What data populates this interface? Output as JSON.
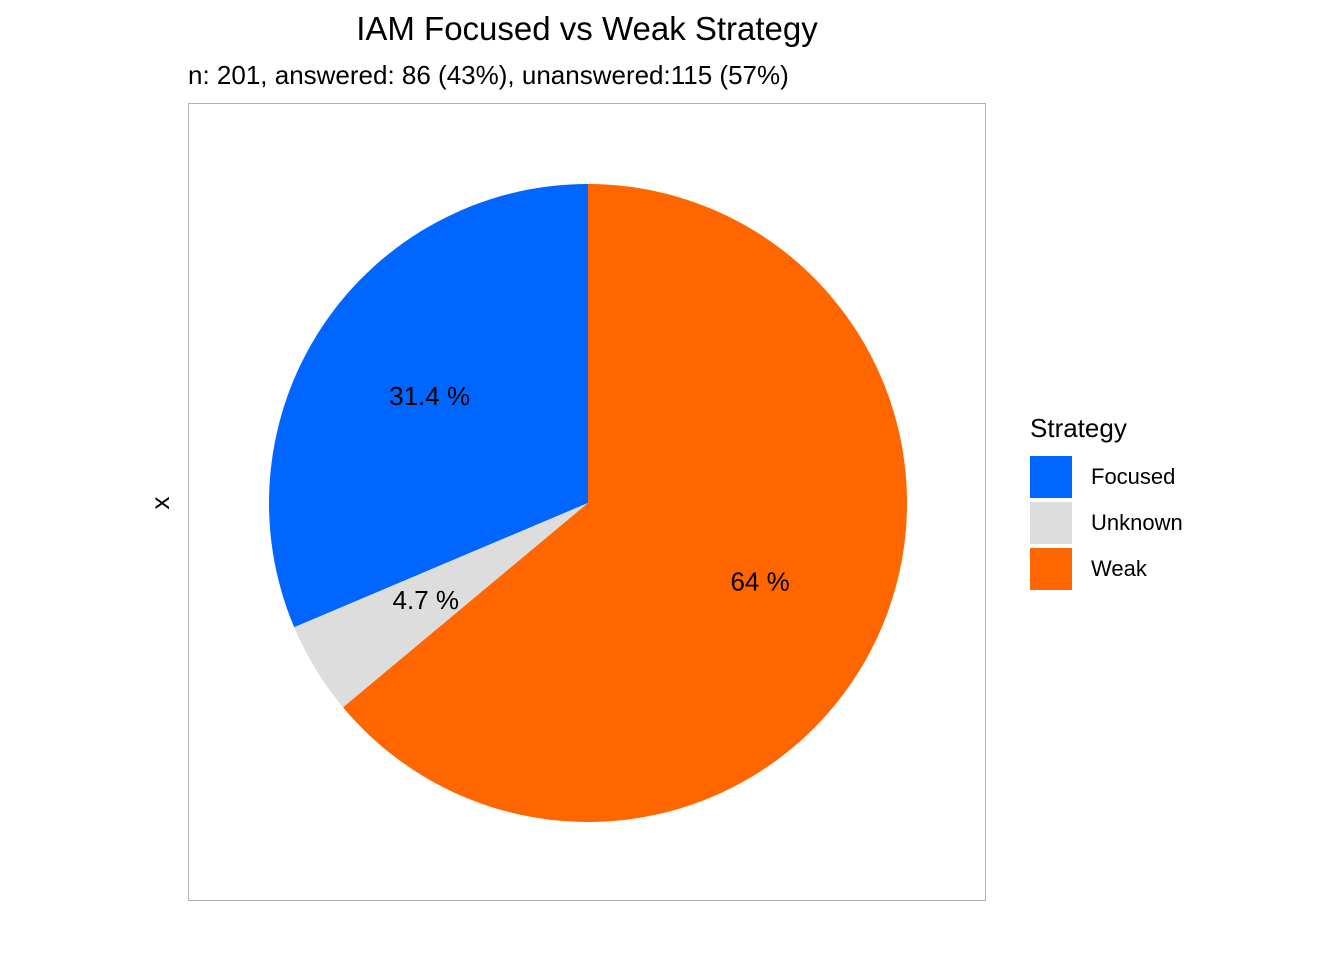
{
  "chart_data": {
    "type": "pie",
    "title": "IAM Focused vs Weak Strategy",
    "subtitle": "n: 201, answered: 86 (43%), unanswered:115 (57%)",
    "xlabel": "",
    "ylabel": "x",
    "legend": {
      "title": "Strategy",
      "position": "right"
    },
    "slices": [
      {
        "category": "Focused",
        "value": 31.4,
        "label": "31.4 %",
        "color": "#0066FF"
      },
      {
        "category": "Unknown",
        "value": 4.7,
        "label": "4.7 %",
        "color": "#DDDDDD"
      },
      {
        "category": "Weak",
        "value": 64,
        "label": "64 %",
        "color": "#FF6600"
      }
    ]
  }
}
